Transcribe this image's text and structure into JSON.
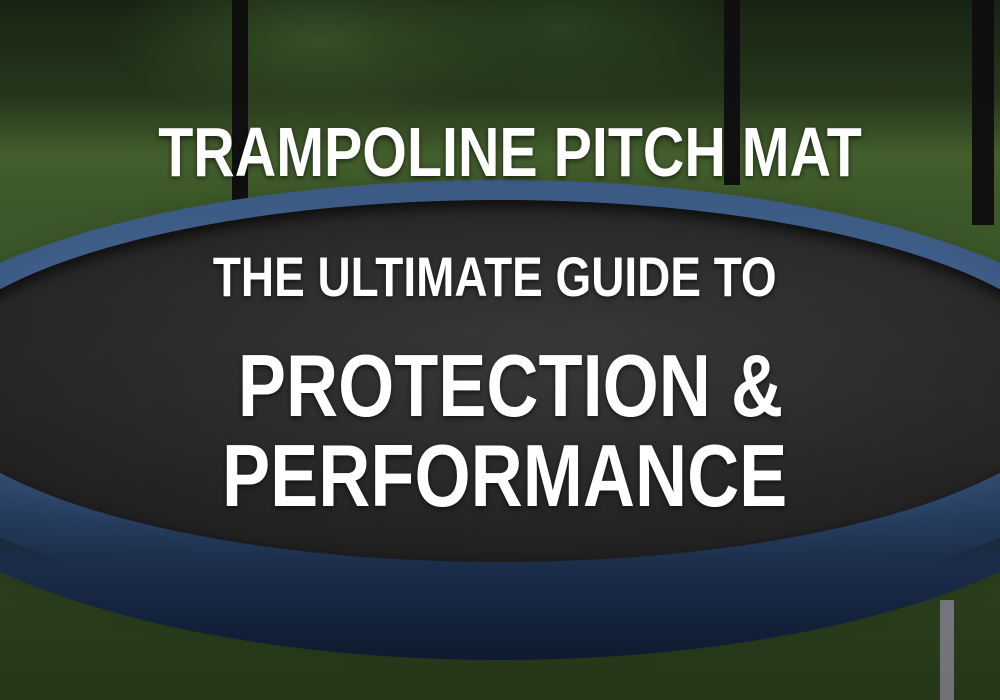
{
  "headline": {
    "title": "TRAMPOLINE PITCH MAT",
    "subtitle": "THE ULTIMATE GUIDE TO",
    "line3": "PROTECTION &",
    "line4": "PERFORMANCE"
  },
  "colors": {
    "rim": "#2f4c78",
    "mat": "#2b2b2b",
    "grass": "#48652f",
    "text": "#ffffff"
  }
}
